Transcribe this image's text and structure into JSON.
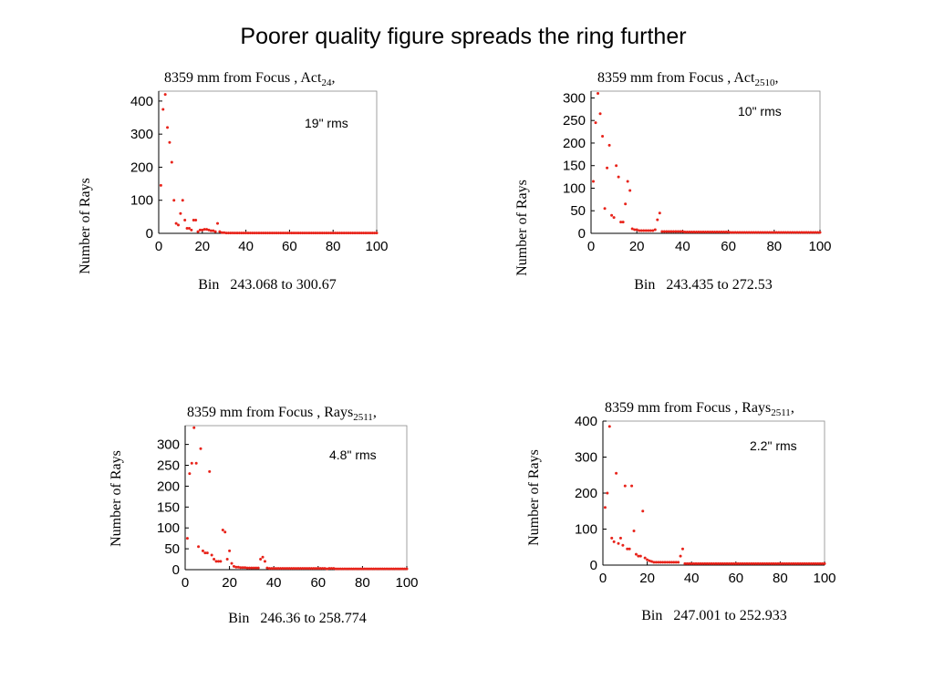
{
  "slide": {
    "title": "Poorer quality figure spreads the ring further"
  },
  "colors": {
    "points": "#e8231a",
    "axis": "#000000",
    "frame": "#8a8a8a"
  },
  "chart_data": [
    {
      "type": "scatter",
      "title_main": "8359 mm from Focus , Act",
      "title_sub": "24",
      "title_tail": ",",
      "ylabel": "Number of Rays",
      "xlabel": "Bin   243.068 to 300.67",
      "annotation": "19\" rms",
      "xlim": [
        0,
        100
      ],
      "ylim": [
        0,
        430
      ],
      "xticks": [
        0,
        20,
        40,
        60,
        80,
        100
      ],
      "yticks": [
        0,
        100,
        200,
        300,
        400
      ],
      "x": [
        1,
        2,
        3,
        4,
        5,
        6,
        7,
        8,
        9,
        10,
        11,
        12,
        13,
        14,
        15,
        16,
        17,
        18,
        19,
        20,
        21,
        22,
        23,
        24,
        25,
        26,
        27,
        28,
        29,
        30,
        31,
        32,
        33,
        34,
        35,
        36,
        37,
        38,
        39,
        40,
        41,
        42,
        43,
        44,
        45,
        46,
        47,
        48,
        49,
        50,
        51,
        52,
        53,
        54,
        55,
        56,
        57,
        58,
        59,
        60,
        61,
        62,
        63,
        64,
        65,
        66,
        67,
        68,
        69,
        70,
        71,
        72,
        73,
        74,
        75,
        76,
        77,
        78,
        79,
        80,
        81,
        82,
        83,
        84,
        85,
        86,
        87,
        88,
        89,
        90,
        91,
        92,
        93,
        94,
        95,
        96,
        97,
        98,
        99,
        100
      ],
      "y": [
        145,
        375,
        420,
        320,
        275,
        215,
        100,
        30,
        25,
        60,
        100,
        40,
        15,
        15,
        10,
        40,
        40,
        5,
        10,
        10,
        12,
        12,
        10,
        8,
        8,
        5,
        30,
        5,
        2,
        2,
        1,
        1,
        1,
        1,
        1,
        1,
        1,
        1,
        1,
        1,
        1,
        1,
        1,
        1,
        1,
        1,
        1,
        1,
        1,
        1,
        1,
        1,
        1,
        1,
        1,
        1,
        1,
        1,
        1,
        1,
        1,
        1,
        1,
        1,
        1,
        1,
        1,
        1,
        1,
        1,
        1,
        1,
        1,
        1,
        1,
        1,
        1,
        1,
        1,
        1,
        1,
        1,
        1,
        1,
        1,
        1,
        1,
        1,
        1,
        1,
        1,
        1,
        1,
        1,
        1,
        1,
        1,
        1,
        1,
        1
      ]
    },
    {
      "type": "scatter",
      "title_main": "8359 mm from Focus , Act",
      "title_sub": "2510",
      "title_tail": ",",
      "ylabel": "Number of Rays",
      "xlabel": "Bin   243.435 to 272.53",
      "annotation": "10\" rms",
      "xlim": [
        0,
        100
      ],
      "ylim": [
        0,
        315
      ],
      "xticks": [
        0,
        20,
        40,
        60,
        80,
        100
      ],
      "yticks": [
        0,
        50,
        100,
        150,
        200,
        250,
        300
      ],
      "x": [
        1,
        2,
        3,
        4,
        5,
        6,
        7,
        8,
        9,
        10,
        11,
        12,
        13,
        14,
        15,
        16,
        17,
        18,
        19,
        20,
        21,
        22,
        23,
        24,
        25,
        26,
        27,
        28,
        29,
        30,
        31,
        32,
        33,
        34,
        35,
        36,
        37,
        38,
        39,
        40,
        41,
        42,
        43,
        44,
        45,
        46,
        47,
        48,
        49,
        50,
        51,
        52,
        53,
        54,
        55,
        56,
        57,
        58,
        59,
        60,
        61,
        62,
        63,
        64,
        65,
        66,
        67,
        68,
        69,
        70,
        71,
        72,
        73,
        74,
        75,
        76,
        77,
        78,
        79,
        80,
        81,
        82,
        83,
        84,
        85,
        86,
        87,
        88,
        89,
        90,
        91,
        92,
        93,
        94,
        95,
        96,
        97,
        98,
        99,
        100
      ],
      "y": [
        115,
        245,
        310,
        265,
        215,
        55,
        145,
        195,
        40,
        35,
        150,
        125,
        25,
        25,
        65,
        115,
        95,
        10,
        8,
        8,
        6,
        6,
        6,
        6,
        6,
        6,
        6,
        8,
        30,
        45,
        4,
        4,
        4,
        4,
        4,
        4,
        4,
        4,
        4,
        4,
        3,
        3,
        3,
        3,
        3,
        3,
        3,
        3,
        3,
        3,
        3,
        3,
        3,
        3,
        3,
        3,
        3,
        3,
        3,
        3,
        2,
        2,
        2,
        2,
        2,
        2,
        2,
        2,
        2,
        2,
        2,
        2,
        2,
        2,
        2,
        2,
        2,
        2,
        2,
        2,
        2,
        2,
        2,
        2,
        2,
        2,
        2,
        2,
        2,
        2,
        2,
        2,
        2,
        2,
        2,
        2,
        2,
        2,
        2,
        2
      ]
    },
    {
      "type": "scatter",
      "title_main": "8359 mm from Focus , Rays",
      "title_sub": "2511",
      "title_tail": ",",
      "ylabel": "Number of Rays",
      "xlabel": "Bin   246.36 to 258.774",
      "annotation": "4.8\" rms",
      "xlim": [
        0,
        100
      ],
      "ylim": [
        0,
        345
      ],
      "xticks": [
        0,
        20,
        40,
        60,
        80,
        100
      ],
      "yticks": [
        0,
        50,
        100,
        150,
        200,
        250,
        300
      ],
      "x": [
        1,
        2,
        3,
        4,
        5,
        6,
        7,
        8,
        9,
        10,
        11,
        12,
        13,
        14,
        15,
        16,
        17,
        18,
        19,
        20,
        21,
        22,
        23,
        24,
        25,
        26,
        27,
        28,
        29,
        30,
        31,
        32,
        33,
        34,
        35,
        36,
        37,
        38,
        39,
        40,
        41,
        42,
        43,
        44,
        45,
        46,
        47,
        48,
        49,
        50,
        51,
        52,
        53,
        54,
        55,
        56,
        57,
        58,
        59,
        60,
        61,
        62,
        63,
        64,
        65,
        66,
        67,
        68,
        69,
        70,
        71,
        72,
        73,
        74,
        75,
        76,
        77,
        78,
        79,
        80,
        81,
        82,
        83,
        84,
        85,
        86,
        87,
        88,
        89,
        90,
        91,
        92,
        93,
        94,
        95,
        96,
        97,
        98,
        99,
        100
      ],
      "y": [
        75,
        230,
        255,
        340,
        255,
        55,
        290,
        45,
        40,
        40,
        235,
        35,
        25,
        20,
        20,
        20,
        95,
        90,
        25,
        45,
        15,
        8,
        6,
        6,
        5,
        5,
        5,
        4,
        4,
        4,
        4,
        4,
        4,
        25,
        30,
        20,
        4,
        3,
        3,
        3,
        3,
        3,
        3,
        3,
        3,
        3,
        3,
        3,
        3,
        3,
        3,
        3,
        3,
        3,
        3,
        3,
        3,
        3,
        3,
        3,
        3,
        3,
        3,
        2,
        3,
        3,
        3,
        2,
        2,
        2,
        2,
        2,
        2,
        2,
        2,
        2,
        2,
        2,
        2,
        2,
        2,
        2,
        2,
        2,
        2,
        2,
        2,
        2,
        2,
        2,
        2,
        2,
        2,
        2,
        2,
        2,
        2,
        2,
        2,
        2
      ]
    },
    {
      "type": "scatter",
      "title_main": "8359 mm from Focus , Rays",
      "title_sub": "2511",
      "title_tail": ",",
      "ylabel": "Number of Rays",
      "xlabel": "Bin   247.001 to 252.933",
      "annotation": "2.2\" rms",
      "xlim": [
        0,
        100
      ],
      "ylim": [
        0,
        400
      ],
      "xticks": [
        0,
        20,
        40,
        60,
        80,
        100
      ],
      "yticks": [
        0,
        100,
        200,
        300,
        400
      ],
      "x": [
        1,
        2,
        3,
        4,
        5,
        6,
        7,
        8,
        9,
        10,
        11,
        12,
        13,
        14,
        15,
        16,
        17,
        18,
        19,
        20,
        21,
        22,
        23,
        24,
        25,
        26,
        27,
        28,
        29,
        30,
        31,
        32,
        33,
        34,
        35,
        36,
        37,
        38,
        39,
        40,
        41,
        42,
        43,
        44,
        45,
        46,
        47,
        48,
        49,
        50,
        51,
        52,
        53,
        54,
        55,
        56,
        57,
        58,
        59,
        60,
        61,
        62,
        63,
        64,
        65,
        66,
        67,
        68,
        69,
        70,
        71,
        72,
        73,
        74,
        75,
        76,
        77,
        78,
        79,
        80,
        81,
        82,
        83,
        84,
        85,
        86,
        87,
        88,
        89,
        90,
        91,
        92,
        93,
        94,
        95,
        96,
        97,
        98,
        99,
        100
      ],
      "y": [
        160,
        200,
        385,
        75,
        65,
        255,
        60,
        75,
        55,
        220,
        45,
        45,
        220,
        95,
        30,
        25,
        25,
        150,
        20,
        15,
        12,
        10,
        8,
        8,
        8,
        8,
        8,
        8,
        8,
        8,
        8,
        8,
        8,
        8,
        25,
        45,
        4,
        4,
        4,
        4,
        4,
        4,
        4,
        4,
        4,
        4,
        4,
        4,
        4,
        4,
        4,
        4,
        4,
        4,
        4,
        4,
        4,
        4,
        4,
        4,
        4,
        4,
        4,
        4,
        4,
        4,
        4,
        4,
        4,
        4,
        4,
        4,
        4,
        4,
        4,
        4,
        4,
        4,
        4,
        4,
        4,
        4,
        4,
        4,
        4,
        4,
        4,
        4,
        4,
        4,
        4,
        4,
        4,
        4,
        4,
        4,
        4,
        4,
        4,
        4
      ]
    }
  ]
}
